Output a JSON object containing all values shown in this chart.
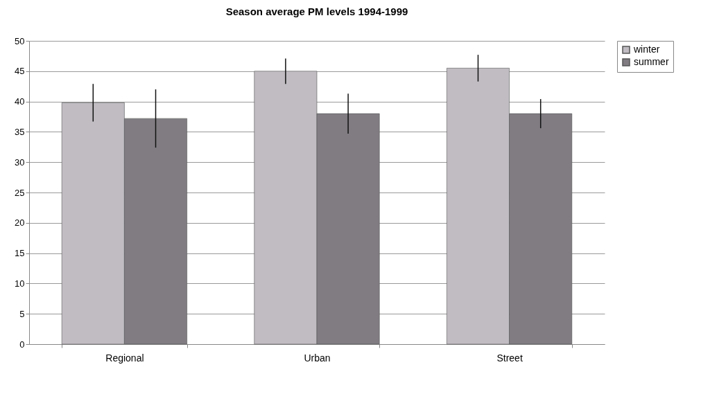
{
  "chart_data": {
    "type": "bar",
    "title": "Season average PM levels 1994-1999",
    "categories": [
      "Regional",
      "Urban",
      "Street"
    ],
    "series": [
      {
        "name": "winter",
        "color": "#c0bcc2",
        "values": [
          39.8,
          45,
          45.5
        ],
        "errors": [
          3.1,
          2.1,
          2.2
        ]
      },
      {
        "name": "summer",
        "color": "#807c82",
        "values": [
          37.2,
          38,
          38
        ],
        "errors": [
          4.8,
          3.3,
          2.4
        ]
      }
    ],
    "ylim": [
      0,
      50
    ],
    "yticks": [
      0,
      5,
      10,
      15,
      20,
      25,
      30,
      35,
      40,
      45,
      50
    ],
    "grid": "y",
    "legend": "right"
  }
}
